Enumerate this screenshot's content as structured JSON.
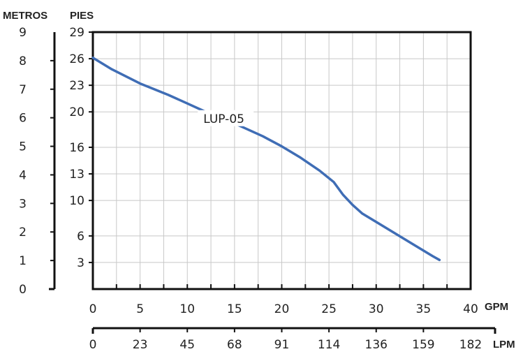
{
  "chart_data": {
    "type": "line",
    "left_axis_title": "METROS",
    "right_axis_title": "PIES",
    "x_unit_top": "GPM",
    "x_unit_bottom": "LPM",
    "metros_ticks": [
      "0",
      "1",
      "2",
      "3",
      "4",
      "5",
      "6",
      "7",
      "8",
      "9"
    ],
    "pies_ticks": [
      "3",
      "6",
      "10",
      "13",
      "16",
      "20",
      "23",
      "26",
      "29"
    ],
    "gpm_ticks": [
      "0",
      "5",
      "10",
      "15",
      "20",
      "25",
      "30",
      "35",
      "40"
    ],
    "lpm_ticks": [
      "0",
      "23",
      "45",
      "68",
      "91",
      "114",
      "136",
      "159",
      "182"
    ],
    "xlim": [
      0,
      40
    ],
    "ylim_metros": [
      0,
      9
    ],
    "grid": true,
    "series": [
      {
        "name": "LUP-05",
        "color": "#3f6db5",
        "x": [
          0,
          2,
          5,
          8,
          10,
          12,
          15,
          18,
          20,
          22,
          24,
          25.5,
          26.5,
          27.5,
          28.5,
          30,
          32,
          34,
          36,
          36.7
        ],
        "y": [
          8.1,
          7.7,
          7.2,
          6.8,
          6.5,
          6.2,
          5.8,
          5.35,
          5.0,
          4.6,
          4.15,
          3.75,
          3.3,
          2.95,
          2.65,
          2.35,
          1.95,
          1.55,
          1.15,
          1.02
        ]
      }
    ],
    "annotation": "LUP-05"
  }
}
